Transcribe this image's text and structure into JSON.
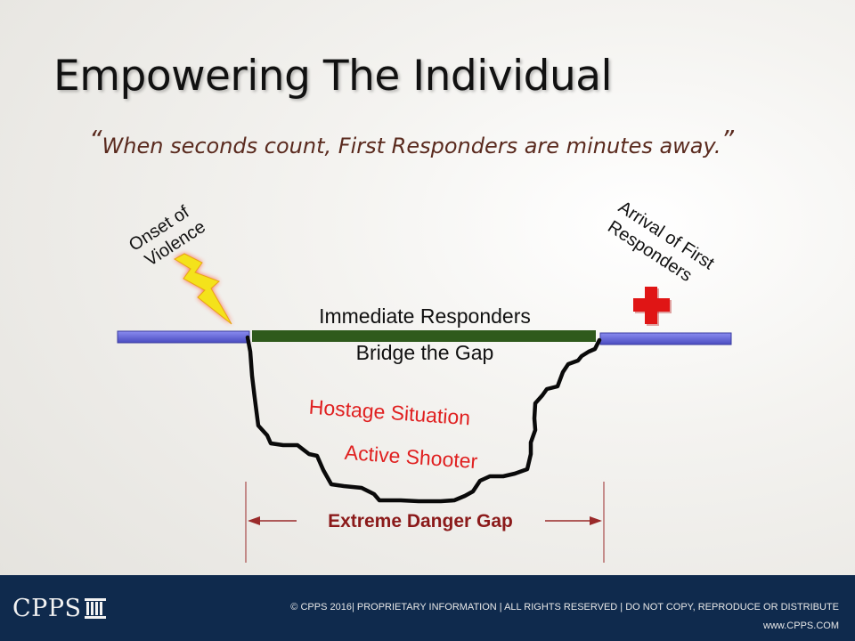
{
  "slide": {
    "title": "Empowering The Individual",
    "quote": {
      "open_mark": "“",
      "text": "When seconds count, First Responders are minutes away.",
      "close_mark": "”"
    }
  },
  "diagram": {
    "onset_label_line1": "Onset of",
    "onset_label_line2": "Violence",
    "arrival_label_line1": "Arrival of First",
    "arrival_label_line2": "Responders",
    "bridge_label_line1": "Immediate Responders",
    "bridge_label_line2": "Bridge the Gap",
    "situation_1": "Hostage Situation",
    "situation_2": "Active Shooter",
    "gap_label": "Extreme Danger Gap",
    "colors": {
      "timeline_bar": "#5d5fd0",
      "bridge_bar": "#2f5a1c",
      "situation_text": "#e02020",
      "gap_label_text": "#8b1a1a",
      "gap_arrow": "#9a2a2a",
      "lightning_bolt": "#f4e21b",
      "medical_cross": "#e01515"
    }
  },
  "footer": {
    "logo_text": "CPPS",
    "copyright": "© CPPS 2016| PROPRIETARY INFORMATION | ALL RIGHTS RESERVED | DO NOT COPY, REPRODUCE OR DISTRIBUTE",
    "website": "www.CPPS.COM",
    "background_color": "#0f2a4d"
  }
}
